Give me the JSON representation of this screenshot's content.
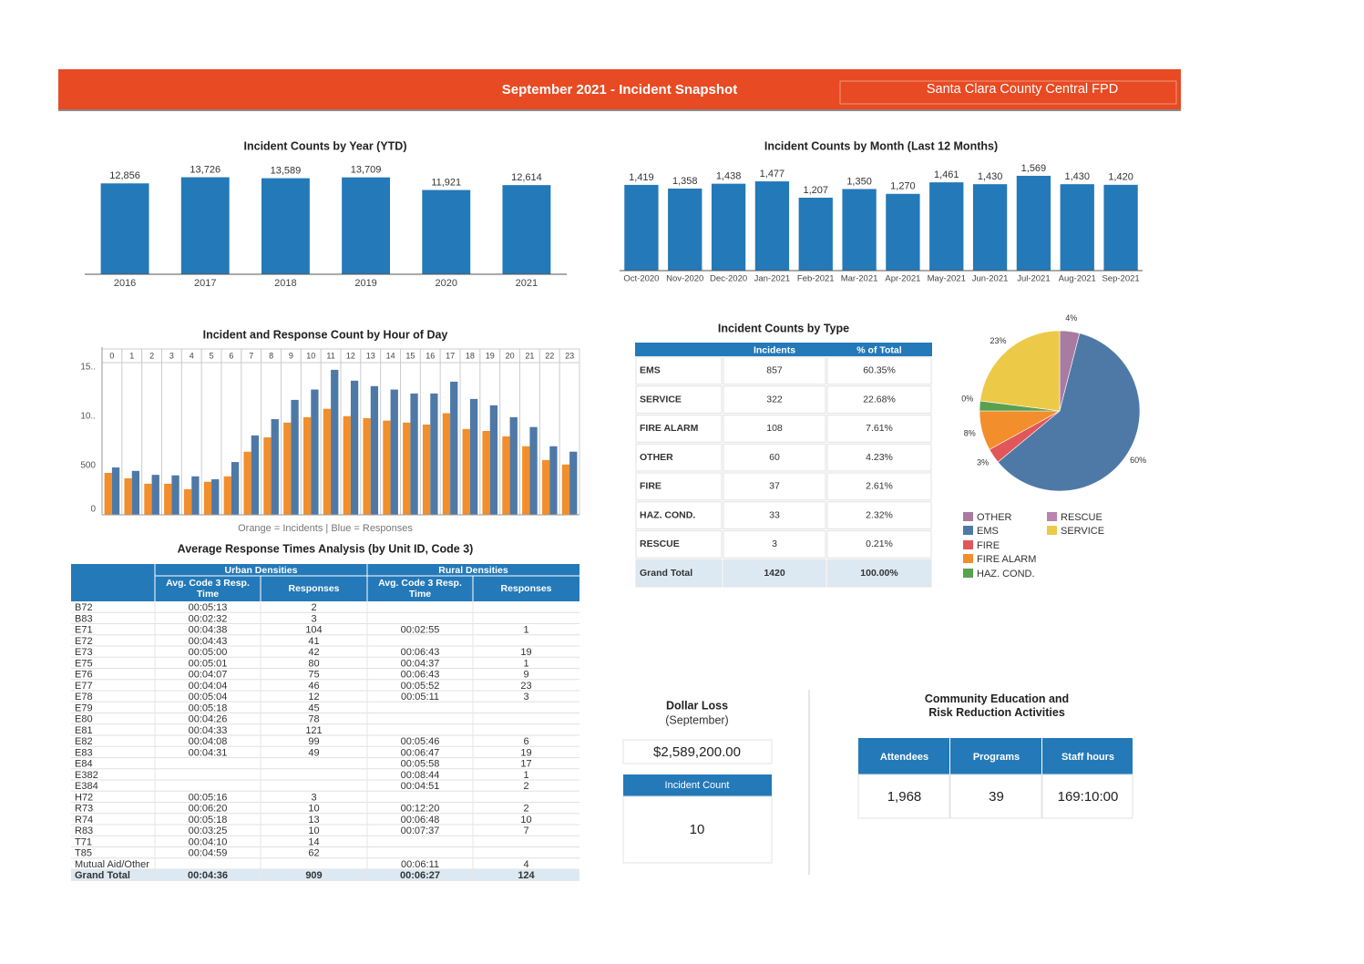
{
  "header": {
    "title": "September 2021 - Incident Snapshot",
    "org": "Santa Clara County Central FPD"
  },
  "chart_data": [
    {
      "type": "bar",
      "title": "Incident Counts by Year (YTD)",
      "categories": [
        "2016",
        "2017",
        "2018",
        "2019",
        "2020",
        "2021"
      ],
      "values": [
        12856,
        13726,
        13589,
        13709,
        11921,
        12614
      ],
      "value_labels": [
        "12,856",
        "13,726",
        "13,589",
        "13,709",
        "11,921",
        "12,614"
      ],
      "color": "#2479b8",
      "ylim": [
        0,
        16500
      ]
    },
    {
      "type": "bar",
      "title": "Incident Counts by Month (Last 12 Months)",
      "categories": [
        "Oct-2020",
        "Nov-2020",
        "Dec-2020",
        "Jan-2021",
        "Feb-2021",
        "Mar-2021",
        "Apr-2021",
        "May-2021",
        "Jun-2021",
        "Jul-2021",
        "Aug-2021",
        "Sep-2021"
      ],
      "values": [
        1419,
        1358,
        1438,
        1477,
        1207,
        1350,
        1270,
        1461,
        1430,
        1569,
        1430,
        1420
      ],
      "value_labels": [
        "1,419",
        "1,358",
        "1,438",
        "1,477",
        "1,207",
        "1,350",
        "1,270",
        "1,461",
        "1,430",
        "1,569",
        "1,430",
        "1,420"
      ],
      "color": "#2479b8",
      "ylim": [
        0,
        1900
      ]
    },
    {
      "type": "bar",
      "title": "Incident and Response Count by Hour of Day",
      "note": "Orange = Incidents | Blue = Responses",
      "categories": [
        "0",
        "1",
        "2",
        "3",
        "4",
        "5",
        "6",
        "7",
        "8",
        "9",
        "10",
        "11",
        "12",
        "13",
        "14",
        "15",
        "16",
        "17",
        "18",
        "19",
        "20",
        "21",
        "22",
        "23"
      ],
      "series": [
        {
          "color": "#f28e2b",
          "values": [
            425,
            370,
            315,
            315,
            260,
            335,
            390,
            640,
            785,
            935,
            990,
            1075,
            1000,
            980,
            955,
            935,
            915,
            1030,
            870,
            850,
            795,
            695,
            555,
            510
          ]
        },
        {
          "color": "#4e79a7",
          "values": [
            480,
            445,
            405,
            400,
            390,
            360,
            535,
            805,
            970,
            1165,
            1270,
            1470,
            1360,
            1305,
            1270,
            1230,
            1230,
            1350,
            1175,
            1110,
            990,
            890,
            695,
            640
          ]
        }
      ],
      "ylim": [
        0,
        1700
      ],
      "yticks": [
        0,
        500,
        {
          "value": 1000,
          "label": "10.."
        },
        {
          "value": 1500,
          "label": "15.."
        }
      ],
      "grid": true
    },
    {
      "type": "pie",
      "categories": [
        "OTHER",
        "EMS",
        "FIRE",
        "FIRE ALARM",
        "HAZ. COND.",
        "RESCUE",
        "SERVICE"
      ],
      "values": [
        4,
        60,
        3,
        8,
        2,
        0,
        23
      ],
      "value_labels": [
        "4%",
        "60%",
        "3%",
        "8%",
        null,
        "0%",
        "23%"
      ],
      "colors": [
        "#a87ca0",
        "#4e79a7",
        "#e15759",
        "#f28e2b",
        "#59a14f",
        "#b884b0",
        "#edc948"
      ]
    }
  ],
  "type_table": {
    "title": "Incident Counts by Type",
    "columns": [
      "Incidents",
      "% of Total"
    ],
    "rows": [
      [
        "EMS",
        "857",
        "60.35%"
      ],
      [
        "SERVICE",
        "322",
        "22.68%"
      ],
      [
        "FIRE ALARM",
        "108",
        "7.61%"
      ],
      [
        "OTHER",
        "60",
        "4.23%"
      ],
      [
        "FIRE",
        "37",
        "2.61%"
      ],
      [
        "HAZ. COND.",
        "33",
        "2.32%"
      ],
      [
        "RESCUE",
        "3",
        "0.21%"
      ],
      [
        "Grand Total",
        "1420",
        "100.00%"
      ]
    ]
  },
  "response_table": {
    "title": "Average Response Times Analysis (by Unit ID, Code 3)",
    "groups": [
      "Urban Densities",
      "Rural Densities"
    ],
    "columns": [
      "Avg. Code 3 Resp. Time",
      "Responses",
      "Avg. Code 3 Resp. Time",
      "Responses"
    ],
    "rows": [
      [
        "B72",
        "00:05:13",
        "2",
        null,
        null
      ],
      [
        "B83",
        "00:02:32",
        "3",
        null,
        null
      ],
      [
        "E71",
        "00:04:38",
        "104",
        "00:02:55",
        "1"
      ],
      [
        "E72",
        "00:04:43",
        "41",
        null,
        null
      ],
      [
        "E73",
        "00:05:00",
        "42",
        "00:06:43",
        "19"
      ],
      [
        "E75",
        "00:05:01",
        "80",
        "00:04:37",
        "1"
      ],
      [
        "E76",
        "00:04:07",
        "75",
        "00:06:43",
        "9"
      ],
      [
        "E77",
        "00:04:04",
        "46",
        "00:05:52",
        "23"
      ],
      [
        "E78",
        "00:05:04",
        "12",
        "00:05:11",
        "3"
      ],
      [
        "E79",
        "00:05:18",
        "45",
        null,
        null
      ],
      [
        "E80",
        "00:04:26",
        "78",
        null,
        null
      ],
      [
        "E81",
        "00:04:33",
        "121",
        null,
        null
      ],
      [
        "E82",
        "00:04:08",
        "99",
        "00:05:46",
        "6"
      ],
      [
        "E83",
        "00:04:31",
        "49",
        "00:06:47",
        "19"
      ],
      [
        "E84",
        null,
        null,
        "00:05:58",
        "17"
      ],
      [
        "E382",
        null,
        null,
        "00:08:44",
        "1"
      ],
      [
        "E384",
        null,
        null,
        "00:04:51",
        "2"
      ],
      [
        "H72",
        "00:05:16",
        "3",
        null,
        null
      ],
      [
        "R73",
        "00:06:20",
        "10",
        "00:12:20",
        "2"
      ],
      [
        "R74",
        "00:05:18",
        "13",
        "00:06:48",
        "10"
      ],
      [
        "R83",
        "00:03:25",
        "10",
        "00:07:37",
        "7"
      ],
      [
        "T71",
        "00:04:10",
        "14",
        null,
        null
      ],
      [
        "T85",
        "00:04:59",
        "62",
        null,
        null
      ],
      [
        "Mutual Aid/Other",
        null,
        null,
        "00:06:11",
        "4"
      ],
      [
        "Grand Total",
        "00:04:36",
        "909",
        "00:06:27",
        "124"
      ]
    ]
  },
  "dollar_loss": {
    "title": "Dollar Loss",
    "subtitle": "(September)",
    "value": "$2,589,200.00",
    "count_label": "Incident Count",
    "count": "10"
  },
  "community": {
    "title": "Community Education and Risk Reduction Activities",
    "columns": [
      "Attendees",
      "Programs",
      "Staff hours"
    ],
    "values": [
      "1,968",
      "39",
      "169:10:00"
    ]
  }
}
